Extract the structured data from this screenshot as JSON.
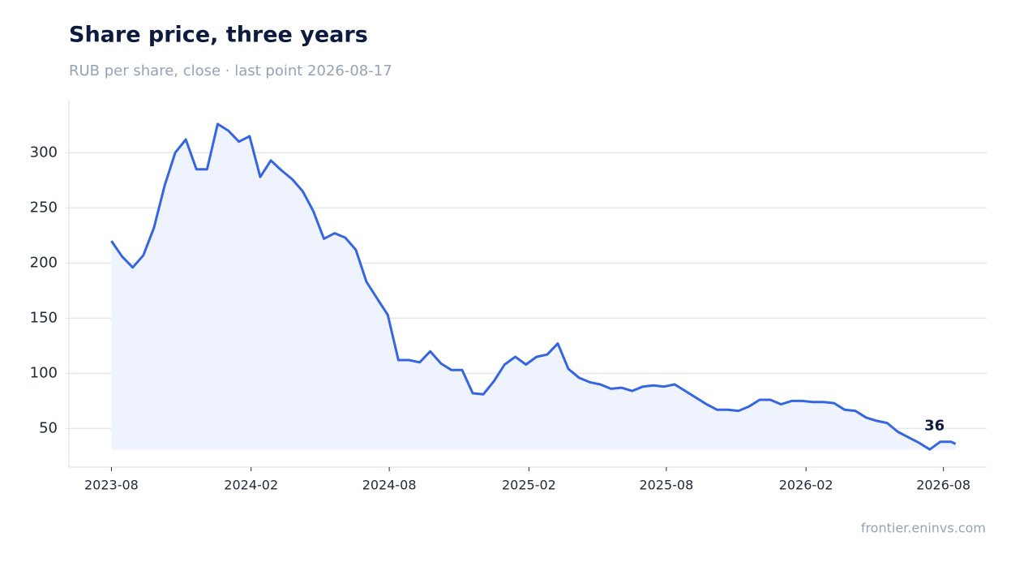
{
  "chart_data": {
    "type": "line",
    "title": "Share price, three years",
    "subtitle": "RUB per share, close · last point 2026-08-17",
    "source": "frontier.eninvs.com",
    "x": [
      "2023-08-01",
      "2023-08-15",
      "2023-08-29",
      "2023-09-12",
      "2023-09-26",
      "2023-10-10",
      "2023-10-24",
      "2023-11-07",
      "2023-11-21",
      "2023-12-05",
      "2023-12-19",
      "2024-01-02",
      "2024-01-16",
      "2024-01-30",
      "2024-02-13",
      "2024-02-27",
      "2024-03-12",
      "2024-03-26",
      "2024-04-09",
      "2024-04-23",
      "2024-05-07",
      "2024-05-21",
      "2024-06-04",
      "2024-06-18",
      "2024-07-02",
      "2024-07-16",
      "2024-07-30",
      "2024-08-13",
      "2024-08-27",
      "2024-09-10",
      "2024-09-24",
      "2024-10-08",
      "2024-10-22",
      "2024-11-05",
      "2024-11-19",
      "2024-12-03",
      "2024-12-17",
      "2024-12-31",
      "2025-01-14",
      "2025-01-28",
      "2025-02-11",
      "2025-02-25",
      "2025-03-11",
      "2025-03-25",
      "2025-04-08",
      "2025-04-22",
      "2025-05-06",
      "2025-05-20",
      "2025-06-03",
      "2025-06-17",
      "2025-07-01",
      "2025-07-15",
      "2025-07-29",
      "2025-08-12",
      "2025-08-26",
      "2025-09-09",
      "2025-09-23",
      "2025-10-07",
      "2025-10-21",
      "2025-11-04",
      "2025-11-18",
      "2025-12-02",
      "2025-12-16",
      "2025-12-30",
      "2026-01-13",
      "2026-01-27",
      "2026-02-10",
      "2026-02-24",
      "2026-03-10",
      "2026-03-24",
      "2026-04-07",
      "2026-04-21",
      "2026-05-05",
      "2026-05-19",
      "2026-06-02",
      "2026-06-16",
      "2026-06-30",
      "2026-07-14",
      "2026-07-28",
      "2026-08-11",
      "2026-08-17"
    ],
    "values": [
      220,
      206,
      196,
      207,
      232,
      270,
      300,
      312,
      285,
      285,
      326,
      320,
      310,
      315,
      278,
      293,
      284,
      276,
      265,
      247,
      222,
      227,
      223,
      212,
      183,
      168,
      153,
      112,
      112,
      110,
      120,
      109,
      103,
      103,
      82,
      81,
      93,
      108,
      115,
      108,
      115,
      117,
      127,
      104,
      96,
      92,
      90,
      86,
      87,
      84,
      88,
      89,
      88,
      90,
      84,
      78,
      72,
      67,
      67,
      66,
      70,
      76,
      76,
      72,
      75,
      75,
      74,
      74,
      73,
      67,
      66,
      60,
      57,
      55,
      47,
      42,
      37,
      31,
      38,
      38,
      36
    ],
    "color": "#3565e0",
    "fill": "#eef3fd",
    "xlim": [
      "2023-06-06",
      "2026-09-27"
    ],
    "xticks": [
      "2023-08",
      "2024-02",
      "2024-08",
      "2025-02",
      "2025-08",
      "2026-02",
      "2026-08"
    ],
    "ylim": [
      15,
      348
    ],
    "yticks": [
      50,
      100,
      150,
      200,
      250,
      300
    ],
    "grid": true
  }
}
